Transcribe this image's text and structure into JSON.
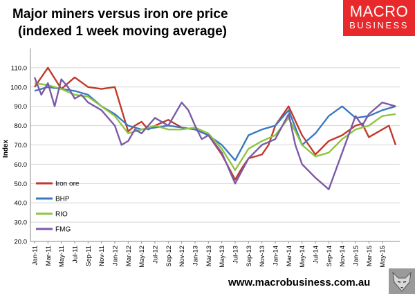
{
  "title_line1": "Major miners versus iron ore price",
  "title_line2": "(indexed 1 week moving average)",
  "logo": {
    "line1": "MACRO",
    "line2": "BUSINESS",
    "color": "#e8282b"
  },
  "website": "www.macrobusiness.com.au",
  "chart_data": {
    "type": "line",
    "ylabel": "Index",
    "ylim": [
      20,
      120
    ],
    "yticks": [
      "20.0",
      "30.0",
      "40.0",
      "50.0",
      "60.0",
      "70.0",
      "80.0",
      "90.0",
      "100.0",
      "110.0"
    ],
    "x_tick_labels": [
      "Jan-11",
      "Mar-11",
      "May-11",
      "Jul-11",
      "Sep-11",
      "Nov-11",
      "Jan-12",
      "Mar-12",
      "May-12",
      "Jul-12",
      "Sep-12",
      "Nov-12",
      "Jan-13",
      "Mar-13",
      "May-13",
      "Jul-13",
      "Sep-13",
      "Nov-13",
      "Jan-14",
      "Mar-14",
      "May-14",
      "Jul-14",
      "Sep-14",
      "Nov-14",
      "Jan-15",
      "Mar-15",
      "May-15"
    ],
    "x_range": [
      0,
      54
    ],
    "x_unit": "half-months since Jan-11",
    "grid": true,
    "legend": "bottom-left",
    "series": [
      {
        "name": "Iron ore",
        "color": "#c0392b",
        "x": [
          0,
          2,
          4,
          6,
          8,
          10,
          12,
          14,
          15,
          16,
          17,
          18,
          20,
          22,
          24,
          26,
          28,
          30,
          31,
          32,
          34,
          35,
          36,
          38,
          40,
          42,
          44,
          46,
          48,
          49,
          50,
          52,
          53,
          54
        ],
        "values": [
          100,
          110,
          99,
          105,
          100,
          99,
          100,
          77,
          80,
          82,
          78,
          80,
          83,
          79,
          78,
          75,
          65,
          52,
          58,
          63,
          65,
          70,
          80,
          90,
          75,
          65,
          72,
          75,
          80,
          81,
          74,
          78,
          80,
          70
        ]
      },
      {
        "name": "BHP",
        "color": "#3a78c0",
        "x": [
          0,
          2,
          4,
          6,
          8,
          10,
          12,
          14,
          16,
          18,
          20,
          22,
          24,
          26,
          28,
          30,
          32,
          34,
          36,
          38,
          40,
          42,
          44,
          46,
          48,
          50,
          52,
          54
        ],
        "values": [
          98,
          100,
          99,
          98,
          96,
          90,
          86,
          80,
          78,
          79,
          80,
          79,
          78,
          75,
          70,
          62,
          75,
          78,
          80,
          88,
          70,
          76,
          85,
          90,
          84,
          85,
          88,
          90
        ]
      },
      {
        "name": "RIO",
        "color": "#8dc63f",
        "x": [
          0,
          2,
          4,
          6,
          8,
          10,
          12,
          14,
          16,
          18,
          20,
          22,
          24,
          26,
          28,
          30,
          32,
          34,
          36,
          38,
          40,
          42,
          44,
          46,
          48,
          50,
          52,
          54
        ],
        "values": [
          102,
          101,
          99,
          96,
          95,
          90,
          85,
          76,
          78,
          80,
          78,
          78,
          79,
          76,
          68,
          57,
          68,
          72,
          75,
          84,
          70,
          64,
          66,
          73,
          78,
          80,
          85,
          86
        ]
      },
      {
        "name": "FMG",
        "color": "#7b5aa6",
        "x": [
          0,
          1,
          2,
          3,
          4,
          5,
          6,
          7,
          8,
          10,
          12,
          13,
          14,
          15,
          16,
          18,
          20,
          22,
          23,
          24,
          25,
          26,
          28,
          30,
          32,
          34,
          36,
          38,
          39,
          40,
          42,
          44,
          46,
          48,
          49,
          50,
          52,
          54
        ],
        "values": [
          105,
          96,
          102,
          90,
          104,
          100,
          94,
          96,
          92,
          88,
          80,
          70,
          72,
          78,
          76,
          84,
          80,
          92,
          88,
          80,
          73,
          75,
          66,
          50,
          63,
          70,
          73,
          86,
          70,
          60,
          53,
          47,
          66,
          85,
          80,
          86,
          92,
          90
        ]
      }
    ]
  }
}
